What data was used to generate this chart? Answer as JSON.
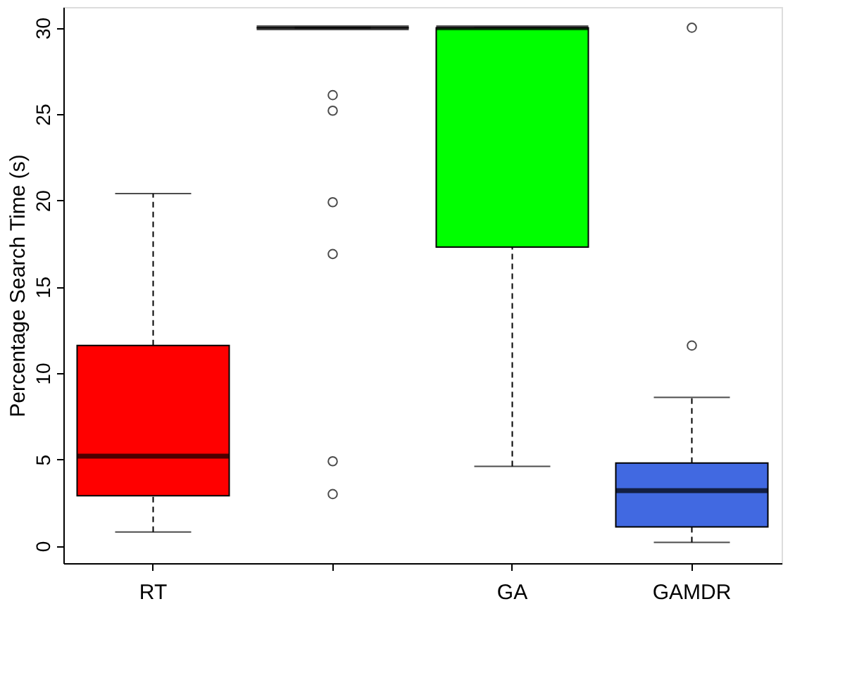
{
  "chart_data": {
    "type": "box",
    "ylabel": "Percentage Search Time (s)",
    "categories": [
      "RT",
      null,
      "GA",
      "GAMDR"
    ],
    "colors": [
      "#ff0000",
      "#000000",
      "#00ff00",
      "#4169e1"
    ],
    "boxes": [
      {
        "low": 0.8,
        "q1": 2.9,
        "median": 5.2,
        "q3": 11.6,
        "high": 20.4
      },
      {
        "low": 30,
        "q1": 30,
        "median": 30,
        "q3": 30,
        "high": 30,
        "outliers": [
          26.1,
          25.2,
          19.9,
          16.9,
          4.9,
          3.0
        ]
      },
      {
        "low": 4.6,
        "q1": 17.3,
        "median": 30,
        "q3": 30,
        "high": 30
      },
      {
        "low": 0.2,
        "q1": 1.1,
        "median": 3.2,
        "q3": 4.8,
        "high": 8.6,
        "outliers": [
          11.6,
          30
        ]
      }
    ],
    "ylim": [
      -1,
      31.2
    ],
    "yticks": [
      0,
      5,
      10,
      15,
      20,
      25,
      30
    ],
    "grid": false,
    "legend": false
  }
}
